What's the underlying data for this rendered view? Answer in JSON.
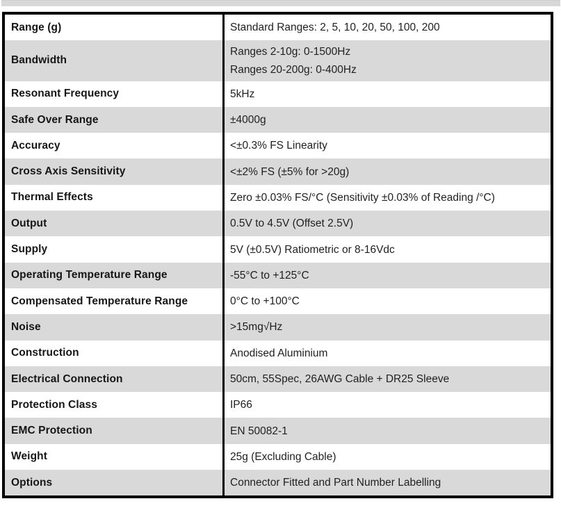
{
  "page": {
    "top_bar_color": "#d8d8d8",
    "row_alt_color": "#d9d9d9",
    "border_color": "#000000"
  },
  "table": {
    "rows": [
      {
        "label": "Range (g)",
        "values": [
          "Standard Ranges: 2, 5, 10, 20, 50, 100, 200"
        ]
      },
      {
        "label": "Bandwidth",
        "values": [
          "Ranges 2-10g: 0-1500Hz",
          "Ranges 20-200g: 0-400Hz"
        ]
      },
      {
        "label": "Resonant Frequency",
        "values": [
          "5kHz"
        ]
      },
      {
        "label": "Safe Over Range",
        "values": [
          "±4000g"
        ]
      },
      {
        "label": "Accuracy",
        "values": [
          "<±0.3% FS Linearity"
        ]
      },
      {
        "label": "Cross Axis Sensitivity",
        "values": [
          "<±2% FS (±5% for >20g)"
        ]
      },
      {
        "label": "Thermal Effects",
        "values": [
          "Zero ±0.03% FS/°C (Sensitivity ±0.03% of Reading /°C)"
        ]
      },
      {
        "label": "Output",
        "values": [
          "0.5V to 4.5V (Offset 2.5V)"
        ]
      },
      {
        "label": "Supply",
        "values": [
          "5V (±0.5V) Ratiometric or 8-16Vdc"
        ]
      },
      {
        "label": "Operating Temperature Range",
        "values": [
          "-55°C to +125°C"
        ]
      },
      {
        "label": "Compensated Temperature Range",
        "values": [
          "0°C to +100°C"
        ]
      },
      {
        "label": "Noise",
        "values": [
          ">15mg√Hz"
        ]
      },
      {
        "label": "Construction",
        "values": [
          "Anodised Aluminium"
        ]
      },
      {
        "label": "Electrical Connection",
        "values": [
          "50cm, 55Spec, 26AWG Cable + DR25 Sleeve"
        ]
      },
      {
        "label": "Protection Class",
        "values": [
          "IP66"
        ]
      },
      {
        "label": "EMC Protection",
        "values": [
          "EN 50082-1"
        ]
      },
      {
        "label": "Weight",
        "values": [
          "25g (Excluding Cable)"
        ]
      },
      {
        "label": "Options",
        "values": [
          "Connector Fitted and Part Number Labelling"
        ]
      }
    ]
  }
}
